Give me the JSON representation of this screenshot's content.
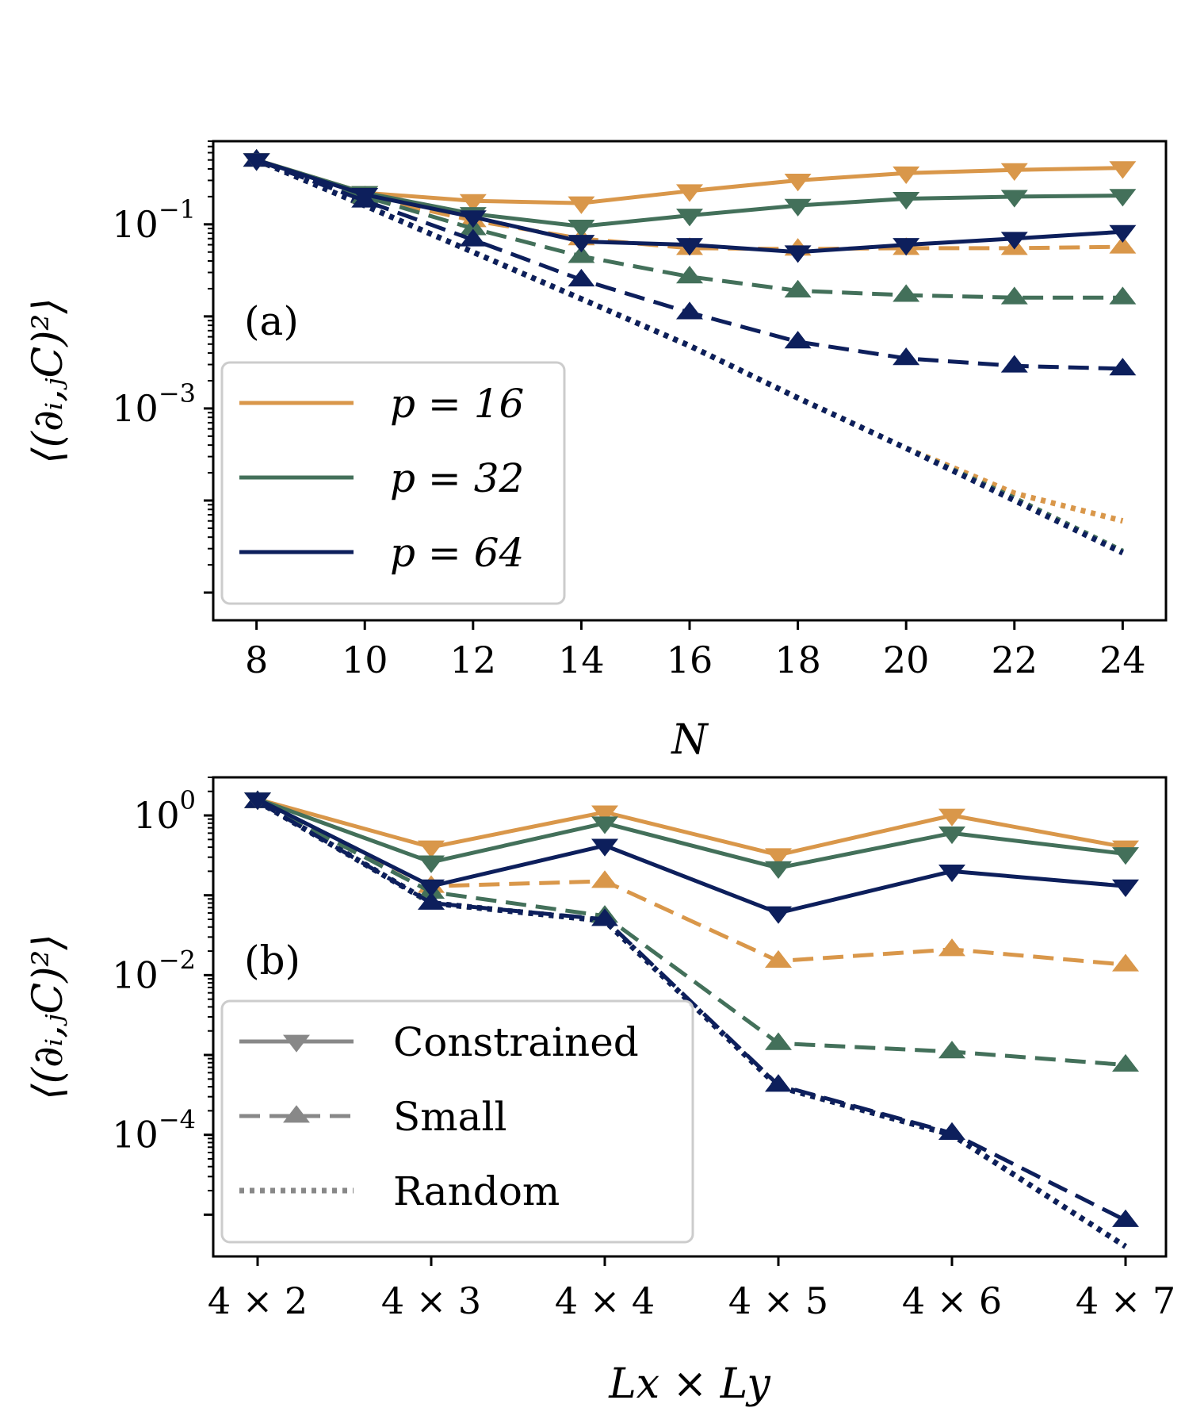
{
  "colors": {
    "p16": "#d9974a",
    "p32": "#43705a",
    "p64": "#0d1f5c",
    "legend_style": "#888888"
  },
  "chart_data": [
    {
      "type": "line",
      "panel_label": "(a)",
      "x_label": "N",
      "y_label": "⟨(∂ᵢ,ⱼC)²⟩",
      "x_ticks": [
        8,
        10,
        12,
        14,
        16,
        18,
        20,
        22,
        24
      ],
      "xlim": [
        7.2,
        24.8
      ],
      "y_scale": "log",
      "ylim": [
        5e-06,
        0.8
      ],
      "y_tick_labels": [
        {
          "value": 0.1,
          "mantissa": "10",
          "exponent": "−1"
        },
        {
          "value": 0.001,
          "mantissa": "10",
          "exponent": "−3"
        }
      ],
      "x": [
        8,
        10,
        12,
        14,
        16,
        18,
        20,
        22,
        24
      ],
      "legend_position": "lower-left",
      "legend_title": "",
      "legend": [
        {
          "label": "p = 16",
          "color_key": "p16"
        },
        {
          "label": "p = 32",
          "color_key": "p32"
        },
        {
          "label": "p = 64",
          "color_key": "p64"
        }
      ],
      "series": [
        {
          "group": "p16",
          "style": "constrained",
          "values": [
            0.5,
            0.22,
            0.18,
            0.17,
            0.23,
            0.3,
            0.36,
            0.39,
            0.41
          ]
        },
        {
          "group": "p32",
          "style": "constrained",
          "values": [
            0.5,
            0.22,
            0.13,
            0.095,
            0.125,
            0.16,
            0.19,
            0.2,
            0.205
          ]
        },
        {
          "group": "p64",
          "style": "constrained",
          "values": [
            0.5,
            0.21,
            0.12,
            0.065,
            0.06,
            0.05,
            0.06,
            0.07,
            0.083
          ]
        },
        {
          "group": "p16",
          "style": "small",
          "values": [
            0.5,
            0.2,
            0.11,
            0.07,
            0.055,
            0.054,
            0.055,
            0.055,
            0.057
          ]
        },
        {
          "group": "p32",
          "style": "small",
          "values": [
            0.5,
            0.2,
            0.09,
            0.045,
            0.027,
            0.019,
            0.017,
            0.016,
            0.016
          ]
        },
        {
          "group": "p64",
          "style": "small",
          "values": [
            0.5,
            0.18,
            0.068,
            0.025,
            0.011,
            0.0053,
            0.0035,
            0.0029,
            0.0027
          ]
        },
        {
          "group": "p16",
          "style": "random",
          "values": [
            0.5,
            0.16,
            0.05,
            0.0155,
            0.0048,
            0.0013,
            0.00037,
            0.00012,
            6e-05
          ]
        },
        {
          "group": "p32",
          "style": "random",
          "values": [
            0.5,
            0.16,
            0.05,
            0.0155,
            0.0048,
            0.0013,
            0.00037,
            0.000105,
            2.8e-05
          ]
        },
        {
          "group": "p64",
          "style": "random",
          "values": [
            0.5,
            0.16,
            0.05,
            0.0155,
            0.0048,
            0.0013,
            0.00037,
            0.0001,
            2.7e-05
          ]
        }
      ]
    },
    {
      "type": "line",
      "panel_label": "(b)",
      "x_label": "Lx × Ly",
      "y_label": "⟨(∂ᵢ,ⱼC)²⟩",
      "categories": [
        "4 × 2",
        "4 × 3",
        "4 × 4",
        "4 × 5",
        "4 × 6",
        "4 × 7"
      ],
      "y_scale": "log",
      "ylim": [
        3e-06,
        3
      ],
      "y_tick_labels": [
        {
          "value": 1,
          "mantissa": "10",
          "exponent": "0"
        },
        {
          "value": 0.01,
          "mantissa": "10",
          "exponent": "−2"
        },
        {
          "value": 0.0001,
          "mantissa": "10",
          "exponent": "−4"
        }
      ],
      "legend_position": "lower-left",
      "legend_title": "",
      "legend": [
        {
          "label": "Constrained",
          "style": "constrained"
        },
        {
          "label": "Small",
          "style": "small"
        },
        {
          "label": "Random",
          "style": "random"
        }
      ],
      "series": [
        {
          "group": "p16",
          "style": "constrained",
          "values": [
            1.6,
            0.4,
            1.1,
            0.32,
            1.0,
            0.4
          ]
        },
        {
          "group": "p32",
          "style": "constrained",
          "values": [
            1.6,
            0.26,
            0.8,
            0.22,
            0.6,
            0.33
          ]
        },
        {
          "group": "p64",
          "style": "constrained",
          "values": [
            1.6,
            0.13,
            0.42,
            0.06,
            0.2,
            0.13
          ]
        },
        {
          "group": "p16",
          "style": "small",
          "values": [
            1.5,
            0.13,
            0.15,
            0.015,
            0.021,
            0.0135
          ]
        },
        {
          "group": "p32",
          "style": "small",
          "values": [
            1.5,
            0.11,
            0.055,
            0.0014,
            0.0011,
            0.00075
          ]
        },
        {
          "group": "p64",
          "style": "small",
          "values": [
            1.5,
            0.08,
            0.05,
            0.00042,
            0.000105,
            8.5e-06
          ]
        },
        {
          "group": "p16",
          "style": "random",
          "values": [
            1.5,
            0.08,
            0.048,
            0.0004,
            0.0001,
            4e-06
          ]
        },
        {
          "group": "p32",
          "style": "random",
          "values": [
            1.5,
            0.08,
            0.048,
            0.0004,
            0.0001,
            4e-06
          ]
        },
        {
          "group": "p64",
          "style": "random",
          "values": [
            1.5,
            0.08,
            0.048,
            0.0004,
            0.0001,
            4e-06
          ]
        }
      ]
    }
  ]
}
